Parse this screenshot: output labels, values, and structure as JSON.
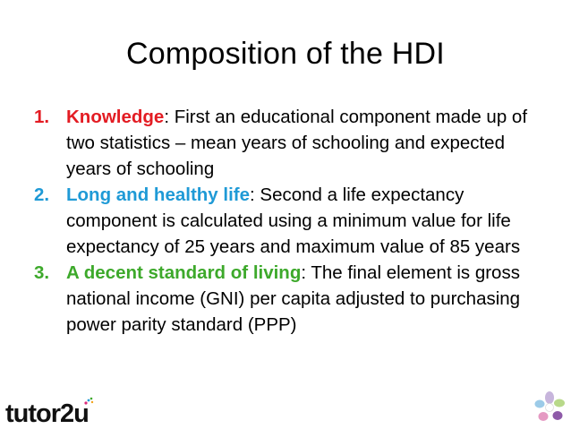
{
  "slide": {
    "title": "Composition of the HDI",
    "points": [
      {
        "number": "1.",
        "term": "Knowledge",
        "term_color": "#e31c23",
        "text": ": First an educational component made up of two statistics – mean years of schooling and expected years of schooling"
      },
      {
        "number": "2.",
        "term": "Long and healthy life",
        "term_color": "#1f9ad6",
        "text": ": Second a life expectancy component is calculated using a minimum value for life expectancy of 25 years and maximum value of 85 years"
      },
      {
        "number": "3.",
        "term": "A decent standard of living",
        "term_color": "#3da92b",
        "text": ": The final element is gross national income (GNI) per capita adjusted to purchasing power parity standard (PPP)"
      }
    ]
  },
  "footer": {
    "logo_text": "tutor2u",
    "flower_icon": "flower-icon"
  }
}
